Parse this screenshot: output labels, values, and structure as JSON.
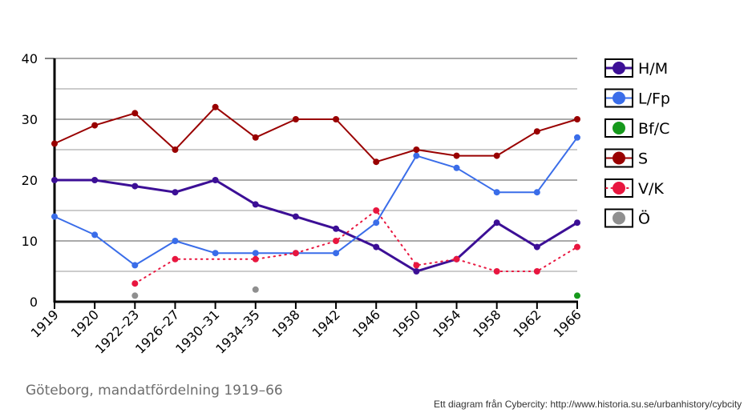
{
  "caption": "Göteborg, mandatfördelning 1919–66",
  "credit": "Ett diagram från Cybercity: http://www.historia.su.se/urbanhistory/cybcity",
  "chart_data": {
    "type": "line",
    "categories": [
      "1919",
      "1920",
      "1922–23",
      "1926–27",
      "1930–31",
      "1934–35",
      "1938",
      "1942",
      "1946",
      "1950",
      "1954",
      "1958",
      "1962",
      "1966"
    ],
    "ylim": [
      0,
      40
    ],
    "yticks": [
      0,
      10,
      20,
      30,
      40
    ],
    "grid": true,
    "legend_position": "right",
    "series": [
      {
        "name": "H/M",
        "color": "#3c0f96",
        "style": "solid",
        "width": 3,
        "values": [
          20,
          20,
          19,
          18,
          20,
          16,
          14,
          12,
          9,
          5,
          7,
          13,
          9,
          13
        ]
      },
      {
        "name": "L/Fp",
        "color": "#3a6de9",
        "style": "solid",
        "width": 2,
        "values": [
          14,
          11,
          6,
          10,
          8,
          8,
          8,
          8,
          13,
          24,
          22,
          18,
          18,
          27
        ]
      },
      {
        "name": "Bf/C",
        "color": "#16991c",
        "style": "none",
        "width": 2,
        "values": [
          null,
          null,
          null,
          null,
          null,
          null,
          null,
          null,
          null,
          null,
          null,
          null,
          null,
          1
        ]
      },
      {
        "name": "S",
        "color": "#990000",
        "style": "solid",
        "width": 2,
        "values": [
          26,
          29,
          31,
          25,
          32,
          27,
          30,
          30,
          23,
          25,
          24,
          24,
          28,
          30
        ]
      },
      {
        "name": "V/K",
        "color": "#e8163f",
        "style": "dotted",
        "width": 2,
        "values": [
          null,
          null,
          3,
          7,
          null,
          7,
          8,
          10,
          15,
          6,
          7,
          5,
          5,
          9
        ]
      },
      {
        "name": "Ö",
        "color": "#8f8f8f",
        "style": "none",
        "width": 2,
        "values": [
          null,
          null,
          1,
          null,
          null,
          2,
          null,
          null,
          null,
          null,
          null,
          null,
          null,
          null
        ]
      }
    ]
  }
}
